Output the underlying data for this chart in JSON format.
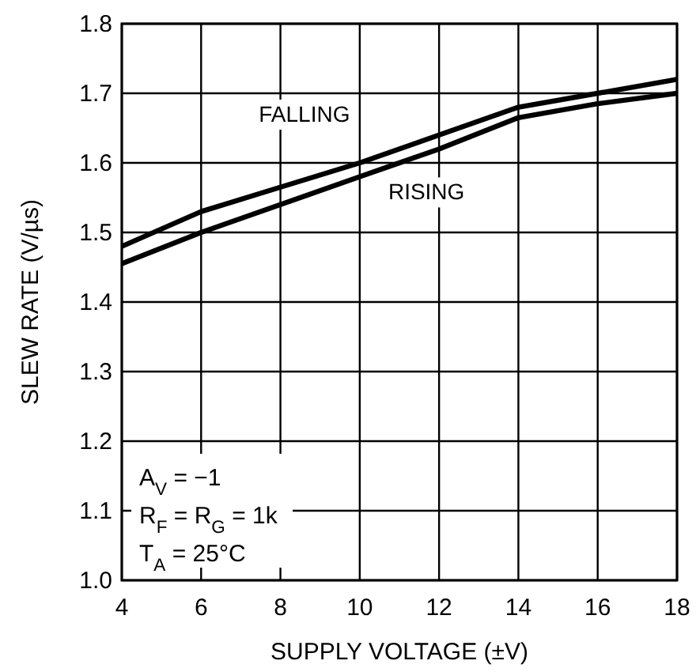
{
  "chart_data": {
    "type": "line",
    "xlabel": "SUPPLY VOLTAGE (±V)",
    "ylabel": "SLEW RATE (V/µs)",
    "x": [
      4,
      6,
      8,
      10,
      12,
      14,
      16,
      18
    ],
    "series": [
      {
        "name": "FALLING",
        "color": "#000000",
        "values": [
          1.48,
          1.53,
          1.565,
          1.6,
          1.64,
          1.68,
          1.7,
          1.72
        ]
      },
      {
        "name": "RISING",
        "color": "#000000",
        "values": [
          1.455,
          1.5,
          1.54,
          1.58,
          1.62,
          1.665,
          1.685,
          1.7
        ]
      }
    ],
    "xlim": [
      4,
      18
    ],
    "xticks": [
      4,
      6,
      8,
      10,
      12,
      14,
      16,
      18
    ],
    "ylim": [
      1.0,
      1.8
    ],
    "yticks": [
      {
        "value": 1.0,
        "label": "1.0"
      },
      1.1,
      1.2,
      1.3,
      1.4,
      1.5,
      1.6,
      1.7,
      1.8
    ],
    "grid": true,
    "legend": false,
    "marker": "none",
    "line_style": "solid",
    "annotations": [
      "A$_{V}$ = −1",
      "R$_{F}$ = R$_{G}$ = 1k",
      "T$_{A}$ = 25°C"
    ]
  }
}
